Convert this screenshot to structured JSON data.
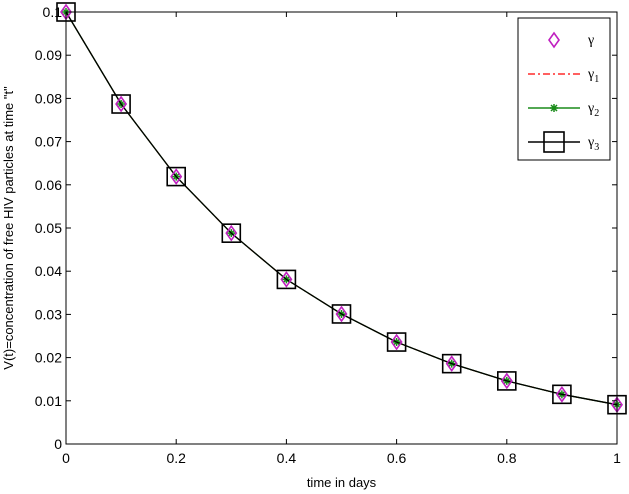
{
  "chart_data": {
    "type": "line",
    "xlabel": "time in days",
    "ylabel": "V(t)=concentration of free HIV particles at time \"t\"",
    "xlim": [
      0,
      1
    ],
    "ylim": [
      0,
      0.1
    ],
    "x_ticks": [
      "0",
      "0.2",
      "0.4",
      "0.6",
      "0.8",
      "1"
    ],
    "x_tick_values": [
      0,
      0.2,
      0.4,
      0.6,
      0.8,
      1
    ],
    "y_ticks": [
      "0",
      "0.01",
      "0.02",
      "0.03",
      "0.04",
      "0.05",
      "0.06",
      "0.07",
      "0.08",
      "0.09",
      "0.1"
    ],
    "y_tick_values": [
      0,
      0.01,
      0.02,
      0.03,
      0.04,
      0.05,
      0.06,
      0.07,
      0.08,
      0.09,
      0.1
    ],
    "grid": false,
    "legend_position": "top-right",
    "x": [
      0,
      0.1,
      0.2,
      0.3,
      0.4,
      0.5,
      0.6,
      0.7,
      0.8,
      0.9,
      1.0
    ],
    "series": [
      {
        "name": "γ",
        "legend_base": "γ",
        "legend_sub": "",
        "style": "diamond-markers",
        "color": "#c020c0",
        "values": [
          0.1,
          0.0787,
          0.0619,
          0.0488,
          0.0381,
          0.0301,
          0.0236,
          0.0186,
          0.0146,
          0.0115,
          0.0091
        ]
      },
      {
        "name": "γ1",
        "legend_base": "γ",
        "legend_sub": "1",
        "style": "dash-dot",
        "color": "#ff0000",
        "values": [
          0.1,
          0.0787,
          0.0619,
          0.0488,
          0.0381,
          0.0301,
          0.0236,
          0.0186,
          0.0146,
          0.0115,
          0.0091
        ]
      },
      {
        "name": "γ2",
        "legend_base": "γ",
        "legend_sub": "2",
        "style": "line-star-markers",
        "color": "#1a8c1a",
        "values": [
          0.1,
          0.0787,
          0.0619,
          0.0488,
          0.0381,
          0.0301,
          0.0236,
          0.0186,
          0.0146,
          0.0115,
          0.0091
        ]
      },
      {
        "name": "γ3",
        "legend_base": "γ",
        "legend_sub": "3",
        "style": "line-square-markers",
        "color": "#000000",
        "values": [
          0.1,
          0.0787,
          0.0619,
          0.0488,
          0.0381,
          0.0301,
          0.0236,
          0.0186,
          0.0146,
          0.0115,
          0.0091
        ]
      }
    ]
  }
}
